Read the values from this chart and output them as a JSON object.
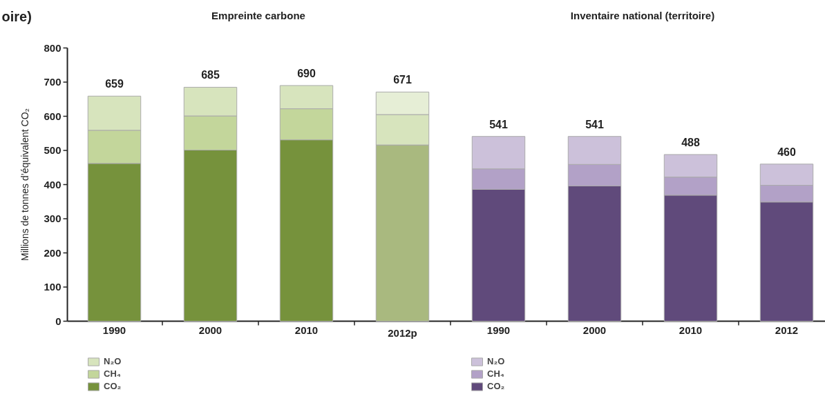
{
  "chart_data": {
    "type": "bar",
    "stacked": true,
    "title": "oire)",
    "ylabel": "Millions de tonnes d’équivalent CO₂",
    "categories": [
      "1990",
      "2000",
      "2010",
      "2012p",
      "1990",
      "2000",
      "2010",
      "2012"
    ],
    "series": [
      {
        "name": "CO₂",
        "color": "#76923c",
        "colors": [
          null,
          null,
          null,
          "#a9b97f",
          null,
          null,
          null,
          null
        ],
        "values": [
          462,
          501,
          531,
          516,
          null,
          null,
          null,
          null
        ]
      },
      {
        "name": "CH₄",
        "color": "#c3d69b",
        "colors": [
          null,
          null,
          null,
          "#d7e4bd",
          null,
          null,
          null,
          null
        ],
        "values": [
          97,
          100,
          91,
          89,
          null,
          null,
          null,
          null
        ]
      },
      {
        "name": "N₂O",
        "color": "#d7e4bd",
        "colors": [
          null,
          null,
          null,
          "#e6eed6",
          null,
          null,
          null,
          null
        ],
        "values": [
          100,
          84,
          68,
          66,
          null,
          null,
          null,
          null
        ]
      },
      {
        "name": "CO₂",
        "color": "#604a7b",
        "values": [
          null,
          null,
          null,
          null,
          386,
          396,
          369,
          349
        ]
      },
      {
        "name": "CH₄",
        "color": "#b2a1c7",
        "values": [
          null,
          null,
          null,
          null,
          60,
          63,
          53,
          49
        ]
      },
      {
        "name": "N₂O",
        "color": "#ccc1da",
        "values": [
          null,
          null,
          null,
          null,
          95,
          82,
          66,
          62
        ]
      }
    ],
    "totals": [
      "659",
      "685",
      "690",
      "671",
      "541",
      "541",
      "488",
      "460"
    ],
    "annotations": [
      "Empreinte carbone",
      "Inventaire national (territoire)"
    ],
    "ylim": [
      0,
      800
    ],
    "yticks": [
      0,
      100,
      200,
      300,
      400,
      500,
      600,
      700,
      800
    ],
    "grid": false,
    "legend": "bottom"
  }
}
